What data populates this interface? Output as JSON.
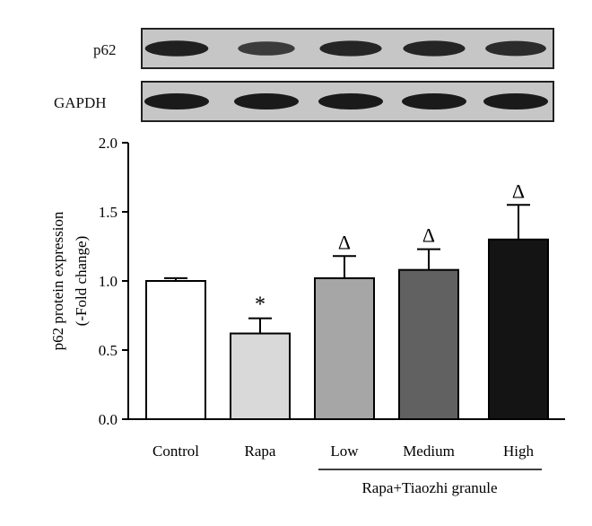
{
  "blots": [
    {
      "label": "p62",
      "intensities": [
        0.95,
        0.7,
        0.9,
        0.9,
        0.85
      ]
    },
    {
      "label": "GAPDH",
      "intensities": [
        1.0,
        1.0,
        1.0,
        1.0,
        1.0
      ]
    }
  ],
  "chart_data": {
    "type": "bar",
    "categories": [
      "Control",
      "Rapa",
      "Low",
      "Medium",
      "High"
    ],
    "values": [
      1.0,
      0.62,
      1.02,
      1.08,
      1.3
    ],
    "errors": [
      0.02,
      0.11,
      0.16,
      0.15,
      0.25
    ],
    "colors": [
      "#ffffff",
      "#d9d9d9",
      "#a6a6a6",
      "#616161",
      "#141414"
    ],
    "markers": [
      "",
      "*",
      "Δ",
      "Δ",
      "Δ"
    ],
    "ylabel_line1": "p62 protein expression",
    "ylabel_line2": "(-Fold change)",
    "ylim": [
      0,
      2.0
    ],
    "yticks": [
      "0.0",
      "0.5",
      "1.0",
      "1.5",
      "2.0"
    ],
    "group_label": "Rapa+Tiaozhi granule",
    "grid": false
  }
}
